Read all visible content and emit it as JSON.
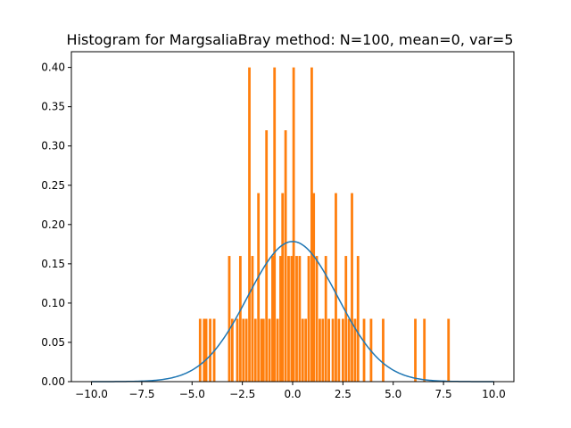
{
  "chart_data": {
    "type": "bar",
    "title": "Histogram for MargsaliaBray method: N=100, mean=0, var=5",
    "xlabel": "",
    "ylabel": "",
    "xlim": [
      -11.0,
      11.0
    ],
    "ylim": [
      0.0,
      0.42
    ],
    "x_ticks": [
      -10.0,
      -7.5,
      -5.0,
      -2.5,
      0.0,
      2.5,
      5.0,
      7.5,
      10.0
    ],
    "x_tick_labels": [
      "−10.0",
      "−7.5",
      "−5.0",
      "−2.5",
      "0.0",
      "2.5",
      "5.0",
      "7.5",
      "10.0"
    ],
    "y_ticks": [
      0.0,
      0.05,
      0.1,
      0.15,
      0.2,
      0.25,
      0.3,
      0.35,
      0.4
    ],
    "y_tick_labels": [
      "0.00",
      "0.05",
      "0.10",
      "0.15",
      "0.20",
      "0.25",
      "0.30",
      "0.35",
      "0.40"
    ],
    "grid": false,
    "colors": {
      "bars": "#ff7f0e",
      "curve": "#1f77b4"
    },
    "histogram": {
      "bin_width": 0.124,
      "bins": [
        {
          "x": -4.6,
          "density": 0.08
        },
        {
          "x": -4.4,
          "density": 0.08
        },
        {
          "x": -4.3,
          "density": 0.08
        },
        {
          "x": -4.1,
          "density": 0.08
        },
        {
          "x": -3.9,
          "density": 0.08
        },
        {
          "x": -3.15,
          "density": 0.16
        },
        {
          "x": -3.0,
          "density": 0.08
        },
        {
          "x": -2.75,
          "density": 0.08
        },
        {
          "x": -2.6,
          "density": 0.16
        },
        {
          "x": -2.45,
          "density": 0.08
        },
        {
          "x": -2.3,
          "density": 0.08
        },
        {
          "x": -2.15,
          "density": 0.4
        },
        {
          "x": -2.0,
          "density": 0.16
        },
        {
          "x": -1.85,
          "density": 0.08
        },
        {
          "x": -1.7,
          "density": 0.24
        },
        {
          "x": -1.55,
          "density": 0.08
        },
        {
          "x": -1.45,
          "density": 0.08
        },
        {
          "x": -1.3,
          "density": 0.32
        },
        {
          "x": -1.15,
          "density": 0.08
        },
        {
          "x": -1.0,
          "density": 0.16
        },
        {
          "x": -0.9,
          "density": 0.4
        },
        {
          "x": -0.75,
          "density": 0.08
        },
        {
          "x": -0.6,
          "density": 0.16
        },
        {
          "x": -0.5,
          "density": 0.24
        },
        {
          "x": -0.35,
          "density": 0.32
        },
        {
          "x": -0.2,
          "density": 0.16
        },
        {
          "x": -0.05,
          "density": 0.16
        },
        {
          "x": 0.05,
          "density": 0.4
        },
        {
          "x": 0.2,
          "density": 0.16
        },
        {
          "x": 0.35,
          "density": 0.16
        },
        {
          "x": 0.5,
          "density": 0.08
        },
        {
          "x": 0.65,
          "density": 0.08
        },
        {
          "x": 0.8,
          "density": 0.16
        },
        {
          "x": 0.95,
          "density": 0.4
        },
        {
          "x": 1.05,
          "density": 0.24
        },
        {
          "x": 1.2,
          "density": 0.16
        },
        {
          "x": 1.35,
          "density": 0.08
        },
        {
          "x": 1.5,
          "density": 0.08
        },
        {
          "x": 1.65,
          "density": 0.16
        },
        {
          "x": 1.8,
          "density": 0.08
        },
        {
          "x": 2.0,
          "density": 0.08
        },
        {
          "x": 2.15,
          "density": 0.24
        },
        {
          "x": 2.3,
          "density": 0.08
        },
        {
          "x": 2.5,
          "density": 0.08
        },
        {
          "x": 2.65,
          "density": 0.16
        },
        {
          "x": 2.8,
          "density": 0.08
        },
        {
          "x": 2.95,
          "density": 0.24
        },
        {
          "x": 3.1,
          "density": 0.08
        },
        {
          "x": 3.25,
          "density": 0.16
        },
        {
          "x": 3.55,
          "density": 0.08
        },
        {
          "x": 3.9,
          "density": 0.08
        },
        {
          "x": 4.5,
          "density": 0.08
        },
        {
          "x": 6.1,
          "density": 0.08
        },
        {
          "x": 6.55,
          "density": 0.08
        },
        {
          "x": 7.75,
          "density": 0.08
        }
      ]
    },
    "curve": {
      "type": "normal_pdf",
      "mean": 0,
      "variance": 5,
      "x_range": [
        -10.0,
        10.0
      ]
    }
  }
}
